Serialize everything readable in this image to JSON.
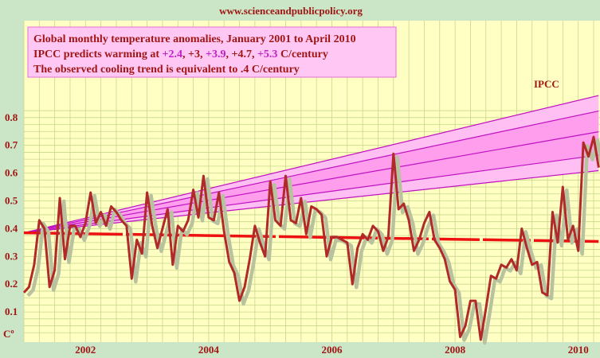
{
  "source": "www.scienceandpublicpolicy.org",
  "chart_data": {
    "type": "line",
    "legend_lines": [
      [
        {
          "text": "Global monthly temperature anomalies, January 2001 to April 2010",
          "hl": false
        }
      ],
      [
        {
          "text": "IPCC predicts warming at ",
          "hl": false
        },
        {
          "text": "+2.4",
          "hl": true
        },
        {
          "text": ", +3, ",
          "hl": false
        },
        {
          "text": "+3.9",
          "hl": true
        },
        {
          "text": ", +4.7, ",
          "hl": false
        },
        {
          "text": "+5.3",
          "hl": true
        },
        {
          "text": " C/century",
          "hl": false
        }
      ],
      [
        {
          "text": "The observed cooling trend is equivalent to .4 C/century",
          "hl": false
        }
      ]
    ],
    "y_unit_label": "Cº",
    "ylim": [
      0,
      0.85
    ],
    "yticks": [
      0.1,
      0.2,
      0.3,
      0.4,
      0.5,
      0.6,
      0.7,
      0.8
    ],
    "ytick_labels": [
      "0.1",
      "0.2",
      "0.3",
      "0.4",
      "0.5",
      "0.6",
      "0.7",
      "0.8"
    ],
    "xlim": [
      2001.0,
      2010.33
    ],
    "xticks": [
      2002,
      2004,
      2006,
      2008,
      2010
    ],
    "xtick_labels": [
      "2002",
      "2004",
      "2006",
      "2008",
      "2010"
    ],
    "grid": true,
    "ipcc_label": "IPCC",
    "ipcc_projection": {
      "start": [
        2001.0,
        0.385
      ],
      "rates_per_century": [
        2.4,
        3.0,
        3.9,
        4.7,
        5.3
      ]
    },
    "trend": {
      "start": [
        2001.0,
        0.385
      ],
      "end": [
        2010.33,
        0.354
      ]
    },
    "series": [
      {
        "start": 2001.0,
        "step": 0.08333,
        "values": [
          0.17,
          0.19,
          0.27,
          0.43,
          0.4,
          0.19,
          0.25,
          0.51,
          0.29,
          0.41,
          0.41,
          0.37,
          0.42,
          0.53,
          0.42,
          0.46,
          0.41,
          0.48,
          0.46,
          0.43,
          0.41,
          0.22,
          0.36,
          0.31,
          0.53,
          0.41,
          0.33,
          0.4,
          0.47,
          0.27,
          0.41,
          0.39,
          0.43,
          0.54,
          0.44,
          0.59,
          0.44,
          0.43,
          0.53,
          0.39,
          0.28,
          0.24,
          0.14,
          0.19,
          0.29,
          0.41,
          0.35,
          0.3,
          0.57,
          0.43,
          0.41,
          0.59,
          0.43,
          0.42,
          0.51,
          0.38,
          0.48,
          0.47,
          0.45,
          0.3,
          0.37,
          0.37,
          0.36,
          0.35,
          0.2,
          0.33,
          0.38,
          0.36,
          0.41,
          0.39,
          0.32,
          0.37,
          0.67,
          0.47,
          0.49,
          0.43,
          0.32,
          0.36,
          0.42,
          0.46,
          0.36,
          0.33,
          0.29,
          0.21,
          0.18,
          0.01,
          0.05,
          0.14,
          0.14,
          0.0,
          0.11,
          0.23,
          0.22,
          0.27,
          0.26,
          0.29,
          0.25,
          0.4,
          0.33,
          0.27,
          0.28,
          0.17,
          0.16,
          0.46,
          0.35,
          0.55,
          0.36,
          0.41,
          0.32,
          0.71,
          0.66,
          0.73,
          0.62
        ]
      }
    ],
    "colors": {
      "plot_bg": "#ffffc4",
      "frame_bg": "#cbe6c6",
      "grid": "#c8d78a",
      "series": "#b02a2a",
      "shadow": "#b8c29e",
      "trend": "#ee1111",
      "ipcc_fill_outer": "#ffbff2",
      "ipcc_fill_inner": "#ff88ea",
      "ipcc_line": "#c010c0",
      "text": "#a01515",
      "highlight": "#c020c8"
    }
  }
}
